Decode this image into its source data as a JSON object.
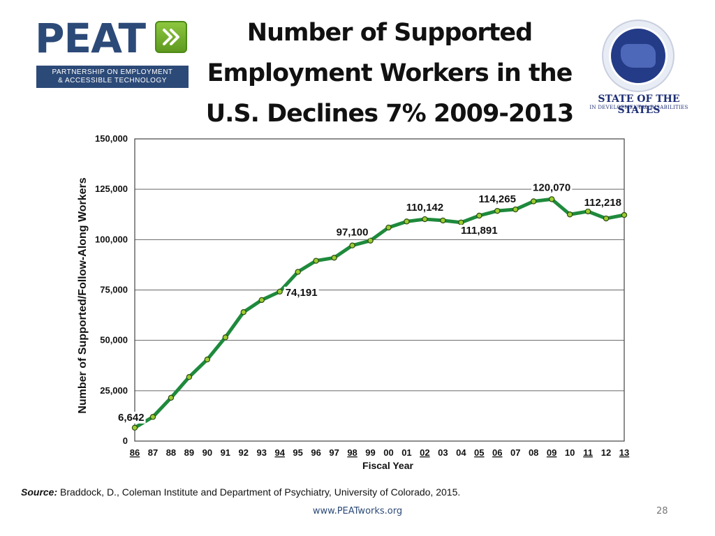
{
  "logo": {
    "wordmark": "PEAT",
    "tagline_line1": "PARTNERSHIP ON EMPLOYMENT",
    "tagline_line2": "& ACCESSIBLE TECHNOLOGY",
    "icon": "double-chevron-right-icon",
    "brand_color": "#2c4a78",
    "accent_color": "#8dc63f"
  },
  "title": {
    "line1": "Number of Supported",
    "line2": "Employment Workers in the",
    "line3": "U.S. Declines 7% 2009-2013"
  },
  "seal": {
    "title": "STATE OF THE STATES",
    "subtitle": "IN DEVELOPMENTAL DISABILITIES"
  },
  "chart_data": {
    "type": "line",
    "ylabel": "Number of Supported/Follow-Along Workers",
    "xlabel": "Fiscal Year",
    "ylim": [
      0,
      150000
    ],
    "yticks": [
      "0",
      "25,000",
      "50,000",
      "75,000",
      "100,000",
      "125,000",
      "150,000"
    ],
    "grid": true,
    "categories": [
      "86",
      "87",
      "88",
      "89",
      "90",
      "91",
      "92",
      "93",
      "94",
      "95",
      "96",
      "97",
      "98",
      "99",
      "00",
      "01",
      "02",
      "03",
      "04",
      "05",
      "06",
      "07",
      "08",
      "09",
      "10",
      "11",
      "12",
      "13"
    ],
    "underlined_categories": [
      "86",
      "94",
      "98",
      "02",
      "05",
      "06",
      "09",
      "11",
      "13"
    ],
    "values": [
      6642,
      12000,
      21500,
      31800,
      40500,
      51500,
      64000,
      70000,
      74191,
      84000,
      89500,
      91000,
      97100,
      99500,
      106000,
      109000,
      110142,
      109500,
      108500,
      111891,
      114265,
      115000,
      119000,
      120070,
      112500,
      114000,
      110500,
      112218
    ],
    "annotations": [
      {
        "category": "86",
        "label": "6,642"
      },
      {
        "category": "94",
        "label": "74,191"
      },
      {
        "category": "98",
        "label": "97,100"
      },
      {
        "category": "02",
        "label": "110,142"
      },
      {
        "category": "05",
        "label": "111,891"
      },
      {
        "category": "06",
        "label": "114,265"
      },
      {
        "category": "09",
        "label": "120,070"
      },
      {
        "category": "13",
        "label": "112,218"
      }
    ],
    "line_color": "#1e8a3c",
    "marker_color": "#9acd32"
  },
  "source": {
    "key": "Source:",
    "text": " Braddock, D., Coleman Institute and Department of Psychiatry, University of Colorado, 2015."
  },
  "footer": {
    "url": "www.PEATworks.org",
    "slide_number": "28"
  }
}
